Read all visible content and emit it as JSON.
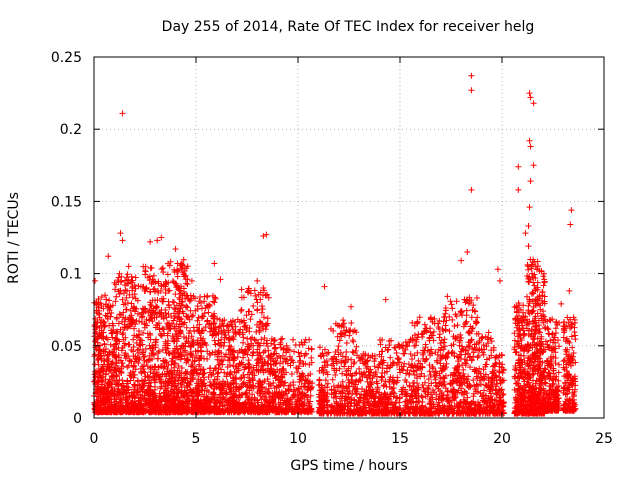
{
  "chart_data": {
    "type": "scatter",
    "title": "Day 255 of 2014, Rate Of TEC Index for receiver helg",
    "xlabel": "GPS time / hours",
    "ylabel": "ROTI / TECUs",
    "xlim": [
      0,
      25
    ],
    "ylim": [
      0,
      0.25
    ],
    "xticks": [
      0,
      5,
      10,
      15,
      20,
      25
    ],
    "yticks": [
      0,
      0.05,
      0.1,
      0.15,
      0.2,
      0.25
    ],
    "xtick_labels": [
      "0",
      "5",
      "10",
      "15",
      "20",
      "25"
    ],
    "ytick_labels": [
      "0",
      "0.05",
      "0.1",
      "0.15",
      "0.2",
      "0.25"
    ],
    "grid": true,
    "marker": "+",
    "color": "#ff0000",
    "series": [
      {
        "name": "ROTI",
        "points": [
          [
            1.4,
            0.211
          ],
          [
            0.05,
            0.095
          ],
          [
            1.3,
            0.128
          ],
          [
            1.4,
            0.123
          ],
          [
            0.7,
            0.112
          ],
          [
            1.7,
            0.105
          ],
          [
            2.75,
            0.122
          ],
          [
            3.1,
            0.123
          ],
          [
            3.3,
            0.125
          ],
          [
            4.0,
            0.117
          ],
          [
            4.1,
            0.098
          ],
          [
            2.0,
            0.092
          ],
          [
            5.9,
            0.107
          ],
          [
            6.2,
            0.096
          ],
          [
            4.8,
            0.095
          ],
          [
            8.3,
            0.126
          ],
          [
            8.45,
            0.127
          ],
          [
            8.0,
            0.095
          ],
          [
            8.3,
            0.09
          ],
          [
            11.3,
            0.091
          ],
          [
            14.3,
            0.082
          ],
          [
            18.3,
            0.115
          ],
          [
            18.0,
            0.109
          ],
          [
            18.5,
            0.237
          ],
          [
            18.5,
            0.227
          ],
          [
            18.5,
            0.158
          ],
          [
            19.8,
            0.103
          ],
          [
            19.9,
            0.095
          ],
          [
            20.8,
            0.174
          ],
          [
            20.8,
            0.158
          ],
          [
            21.35,
            0.225
          ],
          [
            21.4,
            0.222
          ],
          [
            21.55,
            0.218
          ],
          [
            21.35,
            0.192
          ],
          [
            21.4,
            0.188
          ],
          [
            21.55,
            0.175
          ],
          [
            21.4,
            0.164
          ],
          [
            21.35,
            0.146
          ],
          [
            21.3,
            0.133
          ],
          [
            21.15,
            0.128
          ],
          [
            21.3,
            0.119
          ],
          [
            23.4,
            0.144
          ],
          [
            23.35,
            0.134
          ],
          [
            23.3,
            0.088
          ],
          [
            22.9,
            0.079
          ],
          [
            12.6,
            0.077
          ]
        ],
        "clusters": [
          {
            "x": [
              0.0,
              1.0
            ],
            "y": [
              0.004,
              0.085
            ],
            "n": 420
          },
          {
            "x": [
              1.0,
              2.2
            ],
            "y": [
              0.004,
              0.1
            ],
            "n": 420
          },
          {
            "x": [
              2.2,
              3.6
            ],
            "y": [
              0.004,
              0.105
            ],
            "n": 480
          },
          {
            "x": [
              3.6,
              4.6
            ],
            "y": [
              0.004,
              0.11
            ],
            "n": 420
          },
          {
            "x": [
              4.6,
              6.0
            ],
            "y": [
              0.004,
              0.085
            ],
            "n": 420
          },
          {
            "x": [
              6.0,
              7.2
            ],
            "y": [
              0.004,
              0.07
            ],
            "n": 320
          },
          {
            "x": [
              7.2,
              8.6
            ],
            "y": [
              0.004,
              0.09
            ],
            "n": 360
          },
          {
            "x": [
              8.6,
              9.4
            ],
            "y": [
              0.004,
              0.055
            ],
            "n": 180
          },
          {
            "x": [
              9.4,
              10.7
            ],
            "y": [
              0.004,
              0.055
            ],
            "n": 220
          },
          {
            "x": [
              11.0,
              11.5
            ],
            "y": [
              0.003,
              0.05
            ],
            "n": 110
          },
          {
            "x": [
              11.6,
              12.9
            ],
            "y": [
              0.003,
              0.068
            ],
            "n": 240
          },
          {
            "x": [
              12.9,
              14.0
            ],
            "y": [
              0.003,
              0.045
            ],
            "n": 200
          },
          {
            "x": [
              14.0,
              15.6
            ],
            "y": [
              0.003,
              0.055
            ],
            "n": 260
          },
          {
            "x": [
              15.6,
              17.2
            ],
            "y": [
              0.003,
              0.07
            ],
            "n": 320
          },
          {
            "x": [
              17.2,
              18.8
            ],
            "y": [
              0.003,
              0.085
            ],
            "n": 360
          },
          {
            "x": [
              18.8,
              19.6
            ],
            "y": [
              0.003,
              0.06
            ],
            "n": 160
          },
          {
            "x": [
              19.6,
              20.1
            ],
            "y": [
              0.003,
              0.045
            ],
            "n": 100
          },
          {
            "x": [
              20.6,
              21.2
            ],
            "y": [
              0.003,
              0.08
            ],
            "n": 240
          },
          {
            "x": [
              21.2,
              22.1
            ],
            "y": [
              0.003,
              0.11
            ],
            "n": 480
          },
          {
            "x": [
              22.1,
              22.8
            ],
            "y": [
              0.005,
              0.07
            ],
            "n": 200
          },
          {
            "x": [
              23.0,
              23.6
            ],
            "y": [
              0.005,
              0.07
            ],
            "n": 180
          }
        ]
      }
    ]
  }
}
